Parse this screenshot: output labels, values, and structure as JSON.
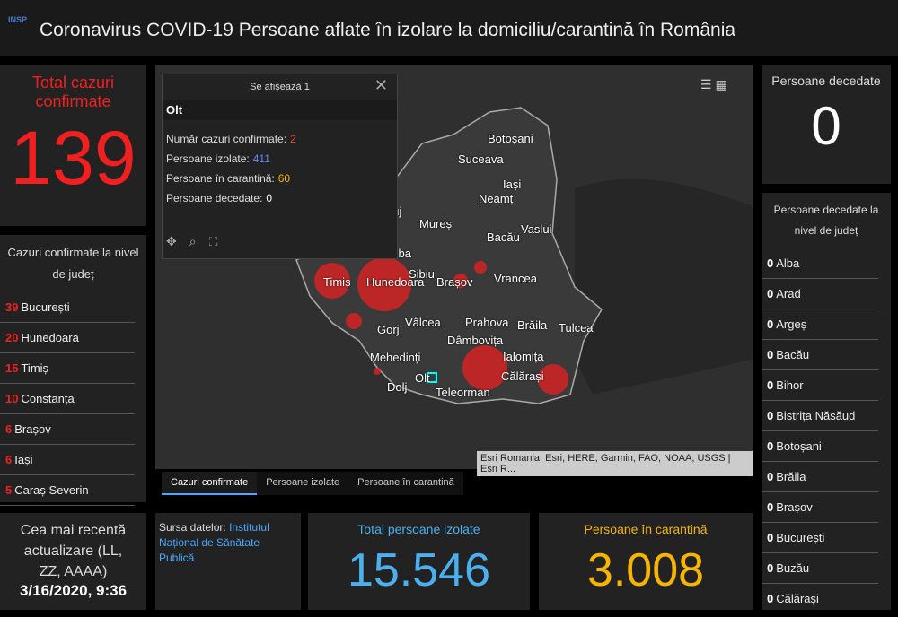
{
  "header": {
    "title": "Coronavirus COVID-19 Persoane aflate în izolare la domiciliu/carantină în România",
    "logo": "INSP"
  },
  "total_cases": {
    "title": "Total cazuri confirmate",
    "value": 139
  },
  "county_cases": {
    "title": "Cazuri confirmate la nivel de județ",
    "rows": [
      {
        "count": 39,
        "county": "București"
      },
      {
        "count": 20,
        "county": "Hunedoara"
      },
      {
        "count": 15,
        "county": "Timiș"
      },
      {
        "count": 10,
        "county": "Constanța"
      },
      {
        "count": 6,
        "county": "Brașov"
      },
      {
        "count": 6,
        "county": "Iași"
      },
      {
        "count": 5,
        "county": "Caraș Severin"
      }
    ]
  },
  "last_update": {
    "title": "Cea mai recentă actualizare (LL, ZZ, AAAA)",
    "value": "3/16/2020, 9:36"
  },
  "source": {
    "label": "Sursa datelor:",
    "link": "Institutul Național de Sănătate Publică"
  },
  "isolated": {
    "title": "Total persoane izolate",
    "value": "15.546"
  },
  "quarantine": {
    "title": "Persoane în carantină",
    "value": "3.008"
  },
  "deaths": {
    "title": "Persoane decedate",
    "value": 0
  },
  "deaths_by_county": {
    "title": "Persoane decedate la nivel de județ",
    "rows": [
      {
        "count": 0,
        "county": "Alba"
      },
      {
        "count": 0,
        "county": "Arad"
      },
      {
        "count": 0,
        "county": "Argeș"
      },
      {
        "count": 0,
        "county": "Bacău"
      },
      {
        "count": 0,
        "county": "Bihor"
      },
      {
        "count": 0,
        "county": "Bistrița Năsăud"
      },
      {
        "count": 0,
        "county": "Botoșani"
      },
      {
        "count": 0,
        "county": "Brăila"
      },
      {
        "count": 0,
        "county": "Brașov"
      },
      {
        "count": 0,
        "county": "București"
      },
      {
        "count": 0,
        "county": "Buzău"
      },
      {
        "count": 0,
        "county": "Călărași"
      }
    ]
  },
  "tabs": [
    "Cazuri confirmate",
    "Persoane izolate",
    "Persoane în carantină"
  ],
  "popup": {
    "title": "Se afișează 1",
    "name": "Olt",
    "fields": [
      {
        "label": "Număr cazuri confirmate:",
        "value": 2
      },
      {
        "label": "Persoane izolate:",
        "value": 411
      },
      {
        "label": "Persoane în carantină:",
        "value": 60
      },
      {
        "label": "Persoane decedate:",
        "value": 0
      }
    ]
  },
  "map": {
    "labels": [
      "Botoșani",
      "Suceava",
      "Iași",
      "Neamț",
      "Vaslui",
      "Bacău",
      "Mureș",
      "Cluj",
      "Alba",
      "Sibiu",
      "Brașov",
      "Vrancea",
      "Timiș",
      "Hunedoara",
      "Gorj",
      "Vâlcea",
      "Prahova",
      "Brăila",
      "Tulcea",
      "Mehedinți",
      "Dâmbovița",
      "Ialomița",
      "Călărași",
      "Dolj",
      "Olt",
      "Teleorman"
    ],
    "attribution": "Esri Romania, Esri, HERE, Garmin, FAO, NOAA, USGS | Esri R..."
  }
}
